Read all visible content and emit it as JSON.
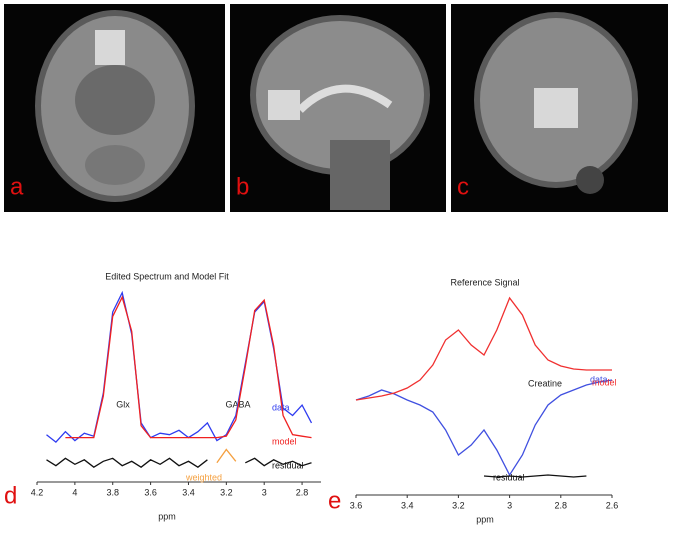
{
  "panels": [
    {
      "label": "a"
    },
    {
      "label": "b"
    },
    {
      "label": "c"
    }
  ],
  "chart_data": [
    {
      "type": "line",
      "panel_label": "d",
      "title": "Edited Spectrum and Model Fit",
      "x_label": "ppm",
      "xlim": [
        4.2,
        2.7
      ],
      "xticks": [
        4.2,
        4,
        3.8,
        3.6,
        3.4,
        3.2,
        3,
        2.8
      ],
      "ylim": [
        -0.3,
        1.1
      ],
      "x": [
        4.15,
        4.1,
        4.05,
        4.0,
        3.95,
        3.9,
        3.85,
        3.8,
        3.75,
        3.7,
        3.65,
        3.6,
        3.55,
        3.5,
        3.45,
        3.4,
        3.35,
        3.3,
        3.25,
        3.2,
        3.15,
        3.1,
        3.05,
        3.0,
        2.95,
        2.9,
        2.85,
        2.8,
        2.75
      ],
      "series": [
        {
          "name": "data",
          "color": "#2f3cf0",
          "values": [
            0.02,
            -0.03,
            0.04,
            -0.02,
            0.03,
            0.01,
            0.3,
            0.85,
            0.98,
            0.7,
            0.1,
            0.0,
            0.03,
            0.02,
            0.05,
            0.0,
            0.04,
            0.1,
            -0.02,
            0.02,
            0.15,
            0.5,
            0.85,
            0.92,
            0.6,
            0.2,
            0.15,
            0.22,
            0.1
          ]
        },
        {
          "name": "model",
          "color": "#f02020",
          "values": [
            null,
            null,
            0,
            0,
            0,
            0,
            0.28,
            0.82,
            0.95,
            0.72,
            0.08,
            0,
            0,
            0,
            0,
            0,
            0,
            0,
            0,
            0.01,
            0.12,
            0.48,
            0.86,
            0.93,
            0.62,
            0.15,
            0.02,
            0.01,
            0.0
          ]
        },
        {
          "name": "residual",
          "color": "#111111",
          "values": [
            -0.15,
            -0.19,
            -0.14,
            -0.18,
            -0.15,
            -0.2,
            -0.16,
            -0.14,
            -0.19,
            -0.16,
            -0.2,
            -0.15,
            -0.18,
            -0.14,
            -0.19,
            -0.16,
            -0.2,
            -0.15,
            null,
            null,
            null,
            -0.17,
            -0.14,
            -0.19,
            -0.15,
            -0.18,
            -0.16,
            -0.19,
            -0.17
          ]
        },
        {
          "name": "weighted",
          "color": "#f5a040",
          "values": [
            null,
            null,
            null,
            null,
            null,
            null,
            null,
            null,
            null,
            null,
            null,
            null,
            null,
            null,
            null,
            null,
            null,
            null,
            -0.17,
            -0.08,
            -0.16,
            null,
            null,
            null,
            null,
            null,
            null,
            null,
            null
          ]
        }
      ],
      "annotations": [
        "Glx",
        "GABA"
      ]
    },
    {
      "type": "line",
      "panel_label": "e",
      "title": "Reference Signal",
      "x_label": "ppm",
      "xlim": [
        3.6,
        2.6
      ],
      "xticks": [
        3.6,
        3.4,
        3.2,
        3,
        2.8,
        2.6
      ],
      "ylim": [
        -0.95,
        1.15
      ],
      "x": [
        3.6,
        3.55,
        3.5,
        3.45,
        3.4,
        3.35,
        3.3,
        3.25,
        3.2,
        3.15,
        3.1,
        3.05,
        3.0,
        2.95,
        2.9,
        2.85,
        2.8,
        2.75,
        2.7,
        2.65,
        2.6
      ],
      "series": [
        {
          "name": "data",
          "color": "#4050e0",
          "values": [
            0.0,
            0.04,
            0.1,
            0.06,
            0.0,
            -0.05,
            -0.12,
            -0.3,
            -0.55,
            -0.45,
            -0.3,
            -0.5,
            -0.75,
            -0.55,
            -0.25,
            -0.05,
            0.05,
            0.1,
            0.15,
            0.18,
            0.2
          ]
        },
        {
          "name": "model",
          "color": "#f03030",
          "values": [
            0.0,
            0.02,
            0.04,
            0.07,
            0.12,
            0.2,
            0.35,
            0.6,
            0.7,
            0.55,
            0.45,
            0.7,
            1.02,
            0.85,
            0.55,
            0.4,
            0.34,
            0.31,
            0.3,
            0.3,
            0.3
          ]
        },
        {
          "name": "residual",
          "color": "#111111",
          "values": [
            null,
            null,
            null,
            null,
            null,
            null,
            null,
            null,
            null,
            null,
            -0.76,
            -0.77,
            -0.76,
            -0.77,
            -0.76,
            -0.75,
            -0.76,
            -0.77,
            -0.76,
            null,
            null
          ]
        }
      ],
      "annotations": [
        "Creatine"
      ]
    }
  ]
}
